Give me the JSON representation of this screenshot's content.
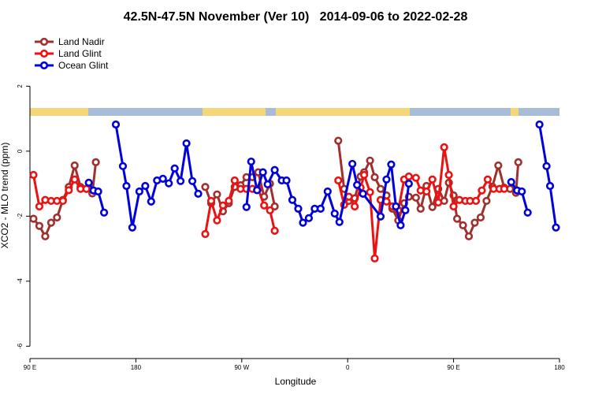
{
  "chart_data": {
    "type": "line",
    "title": "42.5N-47.5N November (Ver 10)   2014-09-06 to 2022-02-28",
    "x_label": "Longitude",
    "y_label": "XCO2 - MLO trend (ppm)",
    "xlim": [
      90,
      540
    ],
    "ylim": [
      -6.38,
      3.73
    ],
    "xticks": [
      {
        "value": 90,
        "label": "90 E"
      },
      180,
      {
        "value": 270,
        "label": "90 W"
      },
      {
        "value": 360,
        "label": "0"
      },
      {
        "value": 450,
        "label": "90 E"
      },
      {
        "value": 540,
        "label": "180"
      }
    ],
    "yticks": [
      2,
      0,
      -2,
      -4,
      -6
    ],
    "legend": "top-left",
    "series": [
      {
        "name": "Land Nadir",
        "color": "#a0302e",
        "x": [
          93,
          98,
          103,
          108,
          113,
          118,
          123,
          128,
          133,
          138,
          143,
          146,
          190,
          239,
          244,
          249,
          254,
          259,
          264,
          269,
          274,
          279,
          284,
          289,
          294,
          298,
          325,
          352,
          357,
          361,
          366,
          371,
          374,
          379,
          383,
          388,
          393,
          398,
          403,
          408,
          412,
          418,
          422,
          427,
          432,
          437,
          442,
          446,
          450,
          453,
          458,
          463,
          468,
          473,
          478,
          483,
          488,
          493,
          498,
          503,
          505
        ],
        "values": [
          -2.08,
          -2.3,
          -2.62,
          -2.2,
          -2.04,
          -1.5,
          -1.1,
          -0.44,
          -1.1,
          -1.16,
          -1.3,
          -0.34,
          null,
          -1.1,
          -1.6,
          -1.33,
          -1.85,
          -1.6,
          -1.1,
          -1.05,
          -0.8,
          -0.8,
          -0.65,
          -1.4,
          -1.0,
          -1.7,
          null,
          0.32,
          -1.16,
          -1.53,
          -1.45,
          -0.78,
          -0.65,
          -0.29,
          -0.8,
          -1.16,
          -1.36,
          -1.77,
          -2.13,
          -1.6,
          -1.4,
          -1.43,
          -1.77,
          -1.07,
          -1.72,
          -1.16,
          -1.53,
          -0.97,
          -1.36,
          -2.08,
          -2.28,
          -2.62,
          -2.2,
          -2.04,
          -1.53,
          -1.09,
          -0.44,
          -1.12,
          -1.16,
          -1.28,
          -0.34
        ]
      },
      {
        "name": "Land Glint",
        "color": "#ee1111",
        "x": [
          93,
          98,
          103,
          108,
          113,
          118,
          123,
          128,
          133,
          138,
          190,
          239,
          244,
          249,
          254,
          259,
          264,
          269,
          274,
          279,
          284,
          289,
          294,
          298,
          325,
          352,
          357,
          361,
          366,
          371,
          374,
          379,
          383,
          388,
          393,
          398,
          403,
          408,
          412,
          418,
          422,
          427,
          432,
          437,
          442,
          446,
          450,
          455,
          460,
          464,
          469,
          474,
          479,
          484,
          489,
          493
        ],
        "values": [
          -0.73,
          -1.7,
          -1.5,
          -1.53,
          -1.53,
          -1.53,
          -1.2,
          -0.87,
          -1.16,
          -1.16,
          null,
          -2.55,
          -1.53,
          -2.13,
          -1.67,
          -1.53,
          -0.9,
          -1.16,
          -1.16,
          -1.16,
          -1.16,
          -1.67,
          -1.82,
          -2.45,
          null,
          -0.9,
          -1.65,
          -1.4,
          -1.7,
          -1.12,
          -0.73,
          -1.26,
          -3.3,
          -1.5,
          -1.55,
          -1.7,
          -1.82,
          -0.87,
          -0.78,
          -0.82,
          -1.21,
          -1.24,
          -0.87,
          -1.58,
          0.12,
          -0.73,
          -1.7,
          -1.5,
          -1.53,
          -1.53,
          -1.53,
          -1.21,
          -0.87,
          -1.16,
          -1.16,
          -1.16
        ]
      },
      {
        "name": "Ocean Glint",
        "color": "#0000dd",
        "x": [
          140,
          144,
          148,
          153,
          158,
          163,
          169,
          172,
          177,
          183,
          188,
          193,
          198,
          203,
          208,
          213,
          218,
          223,
          228,
          233,
          253,
          274,
          278,
          283,
          288,
          292,
          298,
          304,
          308,
          313,
          318,
          322,
          327,
          332,
          337,
          343,
          349,
          353,
          364,
          368,
          373,
          388,
          393,
          397,
          401,
          405,
          409,
          412,
          455,
          499,
          504,
          508,
          513,
          518,
          523,
          529,
          532,
          537
        ],
        "values": [
          -0.97,
          -1.21,
          -1.24,
          -1.89,
          null,
          0.82,
          -0.46,
          -1.07,
          -2.35,
          -1.24,
          -1.07,
          -1.55,
          -0.9,
          -0.85,
          -0.99,
          -0.53,
          -0.92,
          0.24,
          -0.92,
          -1.31,
          null,
          -1.72,
          -0.32,
          -1.2,
          -0.65,
          -1.02,
          -0.58,
          -0.9,
          -0.9,
          -1.5,
          -1.77,
          -2.2,
          -2.06,
          -1.77,
          -1.77,
          -1.24,
          -1.92,
          -2.18,
          -0.39,
          -1.04,
          -1.31,
          -2.01,
          -0.87,
          -0.41,
          -1.7,
          -2.28,
          -1.82,
          -1.0,
          null,
          -0.95,
          -1.21,
          -1.24,
          -1.89,
          null,
          0.82,
          -0.46,
          -1.07,
          -2.35
        ]
      }
    ]
  }
}
